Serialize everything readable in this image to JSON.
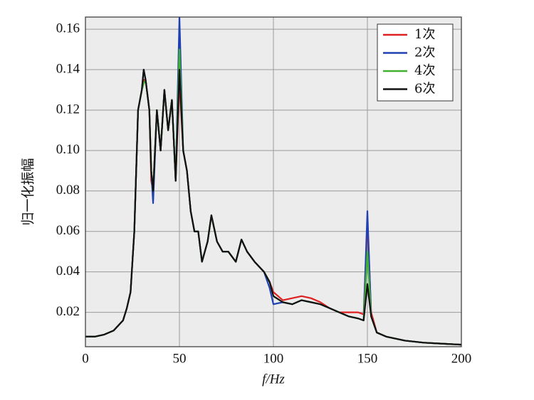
{
  "chart_data": {
    "type": "line",
    "x_label": "f/Hz",
    "y_label": "归一化振幅",
    "x": [
      0,
      5,
      10,
      15,
      20,
      22,
      24,
      26,
      28,
      30,
      31,
      32,
      34,
      35,
      36,
      38,
      40,
      42,
      44,
      46,
      48,
      50,
      52,
      54,
      56,
      58,
      60,
      62,
      65,
      67,
      70,
      73,
      76,
      80,
      83,
      86,
      90,
      95,
      98,
      100,
      105,
      110,
      115,
      120,
      125,
      130,
      135,
      140,
      145,
      148,
      150,
      152,
      155,
      160,
      170,
      180,
      190,
      200
    ],
    "series": [
      {
        "name": "1次",
        "color": "#e02020",
        "values": [
          0.008,
          0.008,
          0.009,
          0.011,
          0.016,
          0.022,
          0.03,
          0.06,
          0.12,
          0.13,
          0.135,
          0.135,
          0.12,
          0.085,
          0.08,
          0.12,
          0.1,
          0.13,
          0.11,
          0.125,
          0.085,
          0.135,
          0.1,
          0.09,
          0.07,
          0.06,
          0.06,
          0.045,
          0.055,
          0.068,
          0.055,
          0.05,
          0.05,
          0.045,
          0.056,
          0.05,
          0.045,
          0.04,
          0.035,
          0.03,
          0.026,
          0.027,
          0.028,
          0.027,
          0.025,
          0.022,
          0.02,
          0.02,
          0.02,
          0.019,
          0.065,
          0.02,
          0.01,
          0.008,
          0.006,
          0.005,
          0.0045,
          0.004
        ]
      },
      {
        "name": "2次",
        "color": "#2040b0",
        "values": [
          0.008,
          0.008,
          0.009,
          0.011,
          0.016,
          0.022,
          0.03,
          0.06,
          0.12,
          0.13,
          0.14,
          0.135,
          0.12,
          0.09,
          0.074,
          0.12,
          0.1,
          0.13,
          0.11,
          0.125,
          0.085,
          0.166,
          0.1,
          0.09,
          0.07,
          0.06,
          0.06,
          0.045,
          0.055,
          0.068,
          0.055,
          0.05,
          0.05,
          0.045,
          0.056,
          0.05,
          0.045,
          0.04,
          0.032,
          0.024,
          0.025,
          0.024,
          0.026,
          0.025,
          0.024,
          0.022,
          0.02,
          0.018,
          0.017,
          0.016,
          0.07,
          0.018,
          0.01,
          0.008,
          0.006,
          0.005,
          0.0045,
          0.004
        ]
      },
      {
        "name": "4次",
        "color": "#40b030",
        "values": [
          0.008,
          0.008,
          0.009,
          0.011,
          0.016,
          0.022,
          0.03,
          0.06,
          0.12,
          0.13,
          0.133,
          0.135,
          0.12,
          0.09,
          0.08,
          0.12,
          0.1,
          0.13,
          0.11,
          0.125,
          0.085,
          0.15,
          0.1,
          0.09,
          0.07,
          0.06,
          0.06,
          0.045,
          0.055,
          0.068,
          0.055,
          0.05,
          0.05,
          0.045,
          0.056,
          0.05,
          0.045,
          0.04,
          0.035,
          0.028,
          0.025,
          0.024,
          0.026,
          0.025,
          0.024,
          0.022,
          0.02,
          0.018,
          0.017,
          0.016,
          0.05,
          0.018,
          0.01,
          0.008,
          0.006,
          0.005,
          0.0045,
          0.004
        ]
      },
      {
        "name": "6次",
        "color": "#111111",
        "values": [
          0.008,
          0.008,
          0.009,
          0.011,
          0.016,
          0.022,
          0.03,
          0.06,
          0.12,
          0.13,
          0.14,
          0.135,
          0.12,
          0.09,
          0.08,
          0.12,
          0.1,
          0.13,
          0.11,
          0.125,
          0.085,
          0.14,
          0.1,
          0.09,
          0.07,
          0.06,
          0.06,
          0.045,
          0.055,
          0.068,
          0.055,
          0.05,
          0.05,
          0.045,
          0.056,
          0.05,
          0.045,
          0.04,
          0.035,
          0.028,
          0.025,
          0.024,
          0.026,
          0.025,
          0.024,
          0.022,
          0.02,
          0.018,
          0.017,
          0.016,
          0.034,
          0.018,
          0.01,
          0.008,
          0.006,
          0.005,
          0.0045,
          0.004
        ]
      }
    ],
    "xlim": [
      0,
      200
    ],
    "xticks": [
      0,
      50,
      100,
      150,
      200
    ],
    "ylim": [
      0.003,
      0.166
    ],
    "yticks": [
      0.02,
      0.04,
      0.06,
      0.08,
      {
        "value": 0.1,
        "label": "0.10"
      },
      0.12,
      0.14,
      0.16
    ],
    "grid": true,
    "legend": "upper-right",
    "background": "#ececec"
  }
}
